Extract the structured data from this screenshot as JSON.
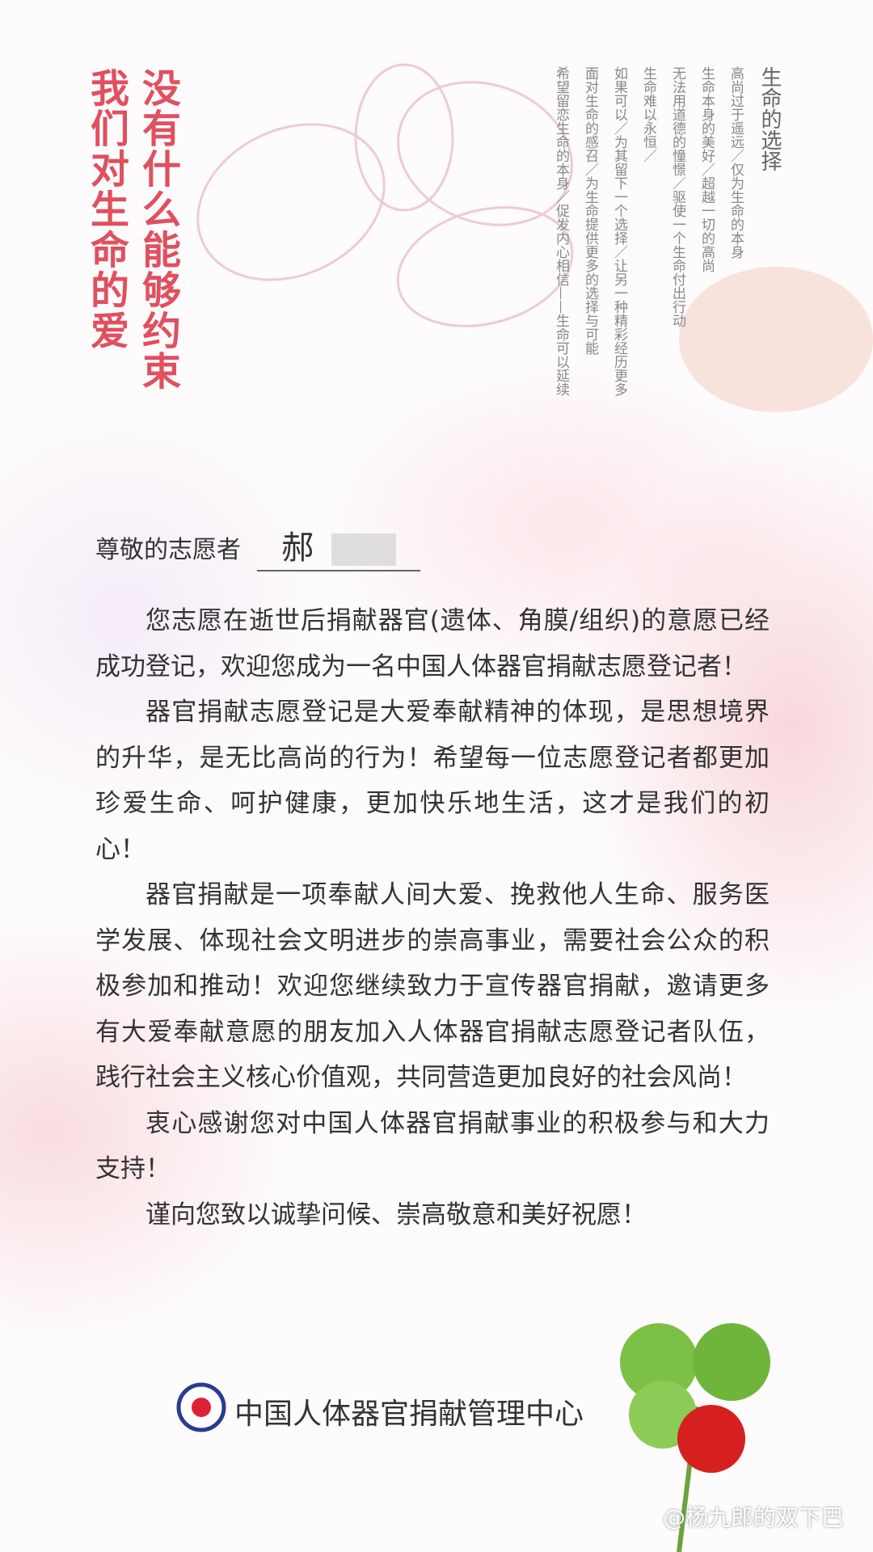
{
  "header": {
    "slogan": [
      "没有什么能够约束",
      "我们对生命的爱"
    ],
    "poem_title": "生命的选择",
    "poem": [
      "高尚过于遥远／仅为生命的本身",
      "生命本身的美好／超越一切的高尚",
      "无法用道德的憧憬／驱使一个生命付出行动",
      "生命难以永恒／",
      "如果可以／为其留下一个选择／让另一种精彩经历更多",
      "面对生命的感召／为生命提供更多的选择与可能",
      "希望留恋生命的本身／促发内心相信——生命可以延续"
    ]
  },
  "letter": {
    "salutation": "尊敬的志愿者",
    "name": "郝",
    "paragraphs": [
      "您志愿在逝世后捐献器官(遗体、角膜/组织)的意愿已经成功登记，欢迎您成为一名中国人体器官捐献志愿登记者！",
      "器官捐献志愿登记是大爱奉献精神的体现，是思想境界的升华，是无比高尚的行为！希望每一位志愿登记者都更加珍爱生命、呵护健康，更加快乐地生活，这才是我们的初心！",
      "器官捐献是一项奉献人间大爱、挽救他人生命、服务医学发展、体现社会文明进步的崇高事业，需要社会公众的积极参加和推动！欢迎您继续致力于宣传器官捐献，邀请更多有大爱奉献意愿的朋友加入人体器官捐献志愿登记者队伍，践行社会主义核心价值观，共同营造更加良好的社会风尚！",
      "衷心感谢您对中国人体器官捐献事业的积极参与和大力支持！",
      "谨向您致以诚挚问候、崇高敬意和美好祝愿！"
    ],
    "signature": "中国人体器官捐献管理中心"
  },
  "watermark": "@杨九郎的双下巴"
}
